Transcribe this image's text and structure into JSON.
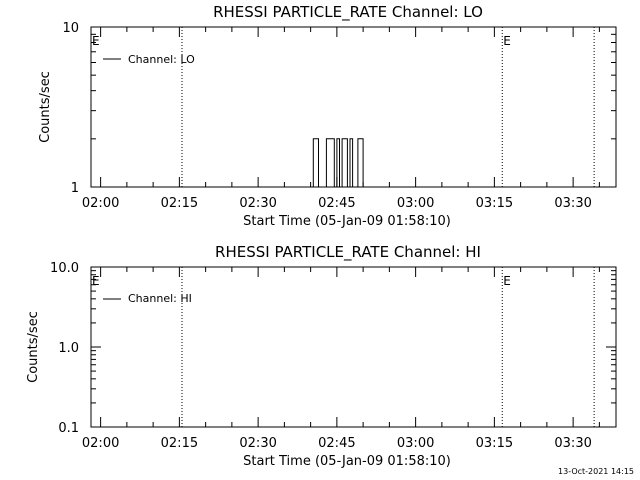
{
  "chart_data": [
    {
      "type": "line",
      "title": "RHESSI PARTICLE_RATE Channel: LO",
      "xlabel": "Start Time (05-Jan-09 01:58:10)",
      "ylabel": "Counts/sec",
      "yscale": "log",
      "ylim": [
        1,
        10
      ],
      "y_tick_labels": [
        "1",
        "10"
      ],
      "x_tick_labels": [
        "02:00",
        "02:15",
        "02:30",
        "02:45",
        "03:00",
        "03:15",
        "03:30"
      ],
      "x_ticks": [
        "02:00",
        "02:15",
        "02:30",
        "02:45",
        "03:00",
        "03:15",
        "03:30"
      ],
      "xlim": [
        "01:58:10",
        "03:38:10"
      ],
      "vlines": [
        "02:15:30",
        "03:16:30",
        "03:34:00"
      ],
      "annotations": [
        {
          "text": "E",
          "x": "01:58:10"
        },
        {
          "text": "E",
          "x": "03:16:30"
        }
      ],
      "legend": {
        "position": "top-left"
      },
      "series": [
        {
          "name": "Channel: LO",
          "x": [
            "02:40:00",
            "02:40:30",
            "02:41:00",
            "02:41:30",
            "02:42:00",
            "02:43:00",
            "02:43:30",
            "02:44:00",
            "02:44:30",
            "02:45:00",
            "02:45:30",
            "02:46:00",
            "02:47:00",
            "02:47:30",
            "02:48:00",
            "02:48:30",
            "02:49:00",
            "02:49:30",
            "02:50:00"
          ],
          "y": [
            1,
            2,
            2,
            1,
            1,
            2,
            2,
            2,
            1,
            2,
            1,
            2,
            1,
            2,
            1,
            1,
            2,
            2,
            1
          ]
        }
      ]
    },
    {
      "type": "line",
      "title": "RHESSI PARTICLE_RATE Channel: HI",
      "xlabel": "Start Time (05-Jan-09 01:58:10)",
      "ylabel": "Counts/sec",
      "yscale": "log",
      "ylim": [
        0.1,
        10
      ],
      "y_tick_labels": [
        "0.1",
        "1.0",
        "10.0"
      ],
      "x_tick_labels": [
        "02:00",
        "02:15",
        "02:30",
        "02:45",
        "03:00",
        "03:15",
        "03:30"
      ],
      "x_ticks": [
        "02:00",
        "02:15",
        "02:30",
        "02:45",
        "03:00",
        "03:15",
        "03:30"
      ],
      "xlim": [
        "01:58:10",
        "03:38:10"
      ],
      "vlines": [
        "02:15:30",
        "03:16:30",
        "03:34:00"
      ],
      "annotations": [
        {
          "text": "E",
          "x": "01:58:10"
        },
        {
          "text": "E",
          "x": "03:16:30"
        }
      ],
      "legend": {
        "position": "top-left"
      },
      "series": [
        {
          "name": "Channel: HI",
          "x": [],
          "y": []
        }
      ]
    }
  ],
  "footer": {
    "stamp": "13-Oct-2021 14:15"
  }
}
